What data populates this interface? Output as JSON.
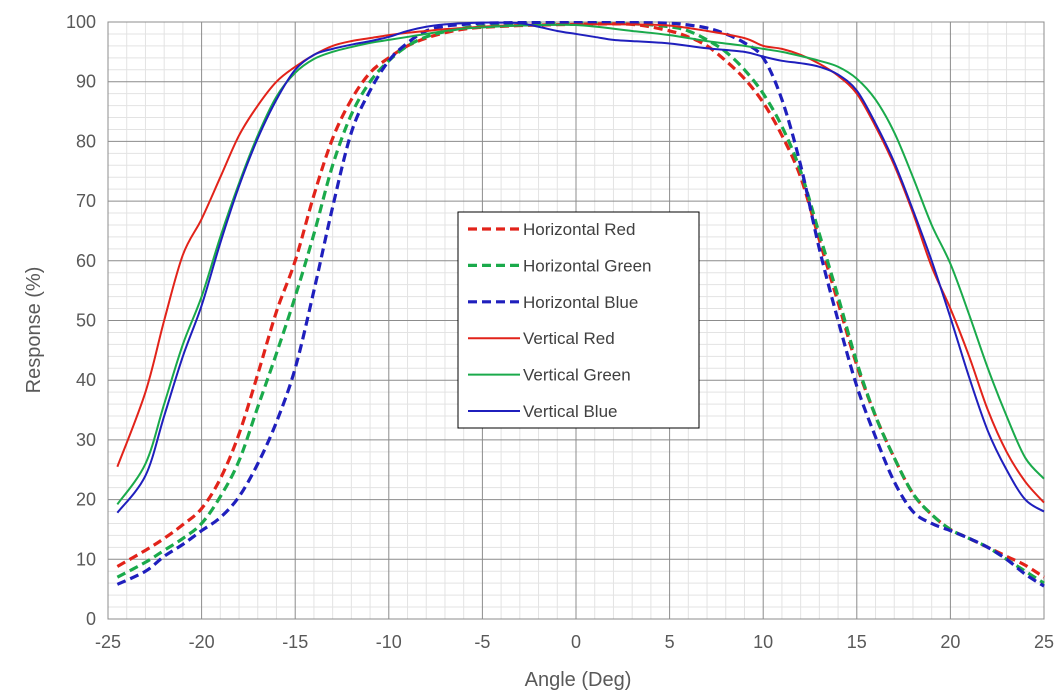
{
  "chart_data": {
    "type": "line",
    "title": "",
    "xlabel": "Angle (Deg)",
    "ylabel": "Response (%)",
    "xlim": [
      -25,
      25
    ],
    "ylim": [
      0,
      100
    ],
    "x_ticks": [
      -25,
      -20,
      -15,
      -10,
      -5,
      0,
      5,
      10,
      15,
      20,
      25
    ],
    "y_ticks": [
      0,
      10,
      20,
      30,
      40,
      50,
      60,
      70,
      80,
      90,
      100
    ],
    "x_tick_labels": [
      "-25",
      "-20",
      "-15",
      "-10",
      "-5",
      "0",
      "5",
      "10",
      "15",
      "20",
      "25"
    ],
    "y_tick_labels": [
      "0",
      "10",
      "20",
      "30",
      "40",
      "50",
      "60",
      "70",
      "80",
      "90",
      "100"
    ],
    "grid": "major and minor",
    "legend_position": "center",
    "series": [
      {
        "name": "Horizontal Red",
        "color": "#e2231a",
        "dash": "dashed",
        "points": [
          [
            -24.5,
            8.8
          ],
          [
            -23,
            11.5
          ],
          [
            -22,
            13.5
          ],
          [
            -21,
            15.8
          ],
          [
            -20,
            18.5
          ],
          [
            -19,
            23.5
          ],
          [
            -18,
            31
          ],
          [
            -17,
            41
          ],
          [
            -16,
            51.5
          ],
          [
            -15,
            60
          ],
          [
            -14,
            71
          ],
          [
            -13,
            80.5
          ],
          [
            -12,
            87
          ],
          [
            -11,
            91.5
          ],
          [
            -10,
            94
          ],
          [
            -9,
            96
          ],
          [
            -8,
            97.3
          ],
          [
            -7,
            98.2
          ],
          [
            -6,
            98.8
          ],
          [
            -5,
            99.1
          ],
          [
            -3,
            99.4
          ],
          [
            0,
            99.6
          ],
          [
            3,
            99.6
          ],
          [
            5,
            98.5
          ],
          [
            6,
            97.5
          ],
          [
            7,
            96
          ],
          [
            8,
            93.5
          ],
          [
            9,
            90.5
          ],
          [
            10,
            86.5
          ],
          [
            11,
            81
          ],
          [
            12,
            74
          ],
          [
            13,
            63.5
          ],
          [
            14,
            53
          ],
          [
            15,
            42.5
          ],
          [
            16,
            34
          ],
          [
            17,
            27
          ],
          [
            18,
            21
          ],
          [
            19,
            17.5
          ],
          [
            20,
            15
          ],
          [
            21,
            13.5
          ],
          [
            22,
            12
          ],
          [
            23,
            10.5
          ],
          [
            24,
            9
          ],
          [
            25,
            7
          ]
        ]
      },
      {
        "name": "Horizontal Green",
        "color": "#1aaa4b",
        "dash": "dashed",
        "points": [
          [
            -24.5,
            7
          ],
          [
            -23,
            9.5
          ],
          [
            -22,
            11.5
          ],
          [
            -21,
            13.5
          ],
          [
            -20,
            16
          ],
          [
            -19,
            20.5
          ],
          [
            -18,
            26.5
          ],
          [
            -17,
            35.5
          ],
          [
            -16,
            44.5
          ],
          [
            -15,
            54
          ],
          [
            -14,
            64.5
          ],
          [
            -13,
            76
          ],
          [
            -12,
            84.5
          ],
          [
            -11,
            90
          ],
          [
            -10,
            93.5
          ],
          [
            -9,
            96
          ],
          [
            -8,
            97.5
          ],
          [
            -7,
            98.4
          ],
          [
            -6,
            99
          ],
          [
            -5,
            99.3
          ],
          [
            -3,
            99.6
          ],
          [
            0,
            99.8
          ],
          [
            3,
            99.7
          ],
          [
            5,
            99.2
          ],
          [
            6,
            98.5
          ],
          [
            7,
            97
          ],
          [
            8,
            95
          ],
          [
            9,
            92
          ],
          [
            10,
            88
          ],
          [
            11,
            82.5
          ],
          [
            12,
            75
          ],
          [
            13,
            64.5
          ],
          [
            14,
            54
          ],
          [
            15,
            43
          ],
          [
            16,
            34
          ],
          [
            17,
            27
          ],
          [
            18,
            21
          ],
          [
            19,
            17.5
          ],
          [
            20,
            15
          ],
          [
            21,
            13.5
          ],
          [
            22,
            12
          ],
          [
            23,
            10
          ],
          [
            24,
            8
          ],
          [
            25,
            6
          ]
        ]
      },
      {
        "name": "Horizontal Blue",
        "color": "#1f1fbd",
        "dash": "dashed",
        "points": [
          [
            -24.5,
            5.8
          ],
          [
            -23,
            8
          ],
          [
            -22,
            10.5
          ],
          [
            -21,
            12.5
          ],
          [
            -20,
            14.8
          ],
          [
            -19,
            17
          ],
          [
            -18,
            20.5
          ],
          [
            -17,
            26
          ],
          [
            -16,
            33
          ],
          [
            -15,
            42
          ],
          [
            -14,
            55
          ],
          [
            -13,
            69
          ],
          [
            -12,
            81.5
          ],
          [
            -11,
            88.5
          ],
          [
            -10,
            93.5
          ],
          [
            -9,
            96.5
          ],
          [
            -8,
            98.5
          ],
          [
            -7,
            99.3
          ],
          [
            -6,
            99.6
          ],
          [
            -5,
            99.8
          ],
          [
            -3,
            99.9
          ],
          [
            0,
            99.9
          ],
          [
            3,
            99.9
          ],
          [
            5,
            99.8
          ],
          [
            6,
            99.5
          ],
          [
            7,
            99
          ],
          [
            8,
            98
          ],
          [
            9,
            96.5
          ],
          [
            10,
            94
          ],
          [
            11,
            87
          ],
          [
            12,
            76
          ],
          [
            13,
            62
          ],
          [
            14,
            50
          ],
          [
            15,
            39
          ],
          [
            16,
            30.5
          ],
          [
            17,
            23
          ],
          [
            18,
            18
          ],
          [
            19,
            16
          ],
          [
            20,
            14.8
          ],
          [
            21,
            13.5
          ],
          [
            22,
            12
          ],
          [
            23,
            10
          ],
          [
            24,
            7.5
          ],
          [
            25,
            5.5
          ]
        ]
      },
      {
        "name": "Vertical Red",
        "color": "#e2231a",
        "dash": "solid",
        "points": [
          [
            -24.5,
            25.5
          ],
          [
            -23,
            38
          ],
          [
            -22,
            50
          ],
          [
            -21,
            61
          ],
          [
            -20,
            67
          ],
          [
            -19,
            74
          ],
          [
            -18,
            81
          ],
          [
            -17,
            86
          ],
          [
            -16,
            90
          ],
          [
            -15,
            92.5
          ],
          [
            -14,
            94.5
          ],
          [
            -13,
            96
          ],
          [
            -12,
            96.8
          ],
          [
            -11,
            97.3
          ],
          [
            -10,
            97.8
          ],
          [
            -9,
            98.2
          ],
          [
            -8,
            98.5
          ],
          [
            -7,
            98.8
          ],
          [
            -6,
            99
          ],
          [
            -5,
            99.2
          ],
          [
            -3,
            99.4
          ],
          [
            0,
            99.6
          ],
          [
            3,
            99.6
          ],
          [
            5,
            99.4
          ],
          [
            7,
            98.5
          ],
          [
            9,
            97.3
          ],
          [
            10,
            96
          ],
          [
            11,
            95.5
          ],
          [
            12,
            94.5
          ],
          [
            13,
            93
          ],
          [
            14,
            91
          ],
          [
            15,
            88
          ],
          [
            16,
            82.5
          ],
          [
            17,
            76
          ],
          [
            18,
            68
          ],
          [
            19,
            59
          ],
          [
            20,
            52
          ],
          [
            21,
            44
          ],
          [
            22,
            35
          ],
          [
            23,
            28
          ],
          [
            24,
            23
          ],
          [
            25,
            19.5
          ]
        ]
      },
      {
        "name": "Vertical Green",
        "color": "#1aaa4b",
        "dash": "solid",
        "points": [
          [
            -24.5,
            19.2
          ],
          [
            -23,
            26
          ],
          [
            -22,
            36
          ],
          [
            -21,
            46
          ],
          [
            -20,
            54
          ],
          [
            -19,
            64
          ],
          [
            -18,
            73
          ],
          [
            -17,
            81
          ],
          [
            -16,
            87.5
          ],
          [
            -15,
            91.5
          ],
          [
            -14,
            93.8
          ],
          [
            -13,
            95
          ],
          [
            -12,
            95.8
          ],
          [
            -11,
            96.5
          ],
          [
            -10,
            97
          ],
          [
            -9,
            97.5
          ],
          [
            -8,
            98
          ],
          [
            -7,
            98.5
          ],
          [
            -6,
            98.9
          ],
          [
            -5,
            99.1
          ],
          [
            -3,
            99.4
          ],
          [
            0,
            99.5
          ],
          [
            3,
            98.5
          ],
          [
            5,
            97.8
          ],
          [
            7,
            96.8
          ],
          [
            9,
            96
          ],
          [
            10,
            95.5
          ],
          [
            11,
            95
          ],
          [
            12,
            94.3
          ],
          [
            13,
            93.5
          ],
          [
            14,
            92.5
          ],
          [
            15,
            90.5
          ],
          [
            16,
            87
          ],
          [
            17,
            81.5
          ],
          [
            18,
            74
          ],
          [
            19,
            66
          ],
          [
            20,
            59.5
          ],
          [
            21,
            51
          ],
          [
            22,
            42
          ],
          [
            23,
            34
          ],
          [
            24,
            27
          ],
          [
            25,
            23.5
          ]
        ]
      },
      {
        "name": "Vertical Blue",
        "color": "#1f1fbd",
        "dash": "solid",
        "points": [
          [
            -24.5,
            17.8
          ],
          [
            -23,
            24
          ],
          [
            -22,
            34
          ],
          [
            -21,
            44
          ],
          [
            -20,
            52.5
          ],
          [
            -19,
            63
          ],
          [
            -18,
            72.5
          ],
          [
            -17,
            80.5
          ],
          [
            -16,
            87
          ],
          [
            -15,
            92
          ],
          [
            -14,
            94.5
          ],
          [
            -13,
            95.5
          ],
          [
            -12,
            96.2
          ],
          [
            -11,
            96.8
          ],
          [
            -10,
            97.5
          ],
          [
            -9,
            98.5
          ],
          [
            -8,
            99.2
          ],
          [
            -7,
            99.6
          ],
          [
            -6,
            99.8
          ],
          [
            -5,
            99.9
          ],
          [
            -4,
            99.9
          ],
          [
            -3,
            99.8
          ],
          [
            -2,
            99.2
          ],
          [
            -1,
            98.5
          ],
          [
            0,
            98
          ],
          [
            1,
            97.5
          ],
          [
            2,
            97
          ],
          [
            3,
            96.8
          ],
          [
            5,
            96.4
          ],
          [
            7,
            95.6
          ],
          [
            9,
            95
          ],
          [
            10,
            94.2
          ],
          [
            11,
            93.5
          ],
          [
            12,
            93.1
          ],
          [
            13,
            92.5
          ],
          [
            14,
            91.2
          ],
          [
            15,
            88.5
          ],
          [
            16,
            83
          ],
          [
            17,
            76.5
          ],
          [
            18,
            68.5
          ],
          [
            19,
            60
          ],
          [
            20,
            50.5
          ],
          [
            21,
            40.5
          ],
          [
            22,
            31.5
          ],
          [
            23,
            25
          ],
          [
            24,
            20
          ],
          [
            25,
            18
          ]
        ]
      }
    ]
  }
}
